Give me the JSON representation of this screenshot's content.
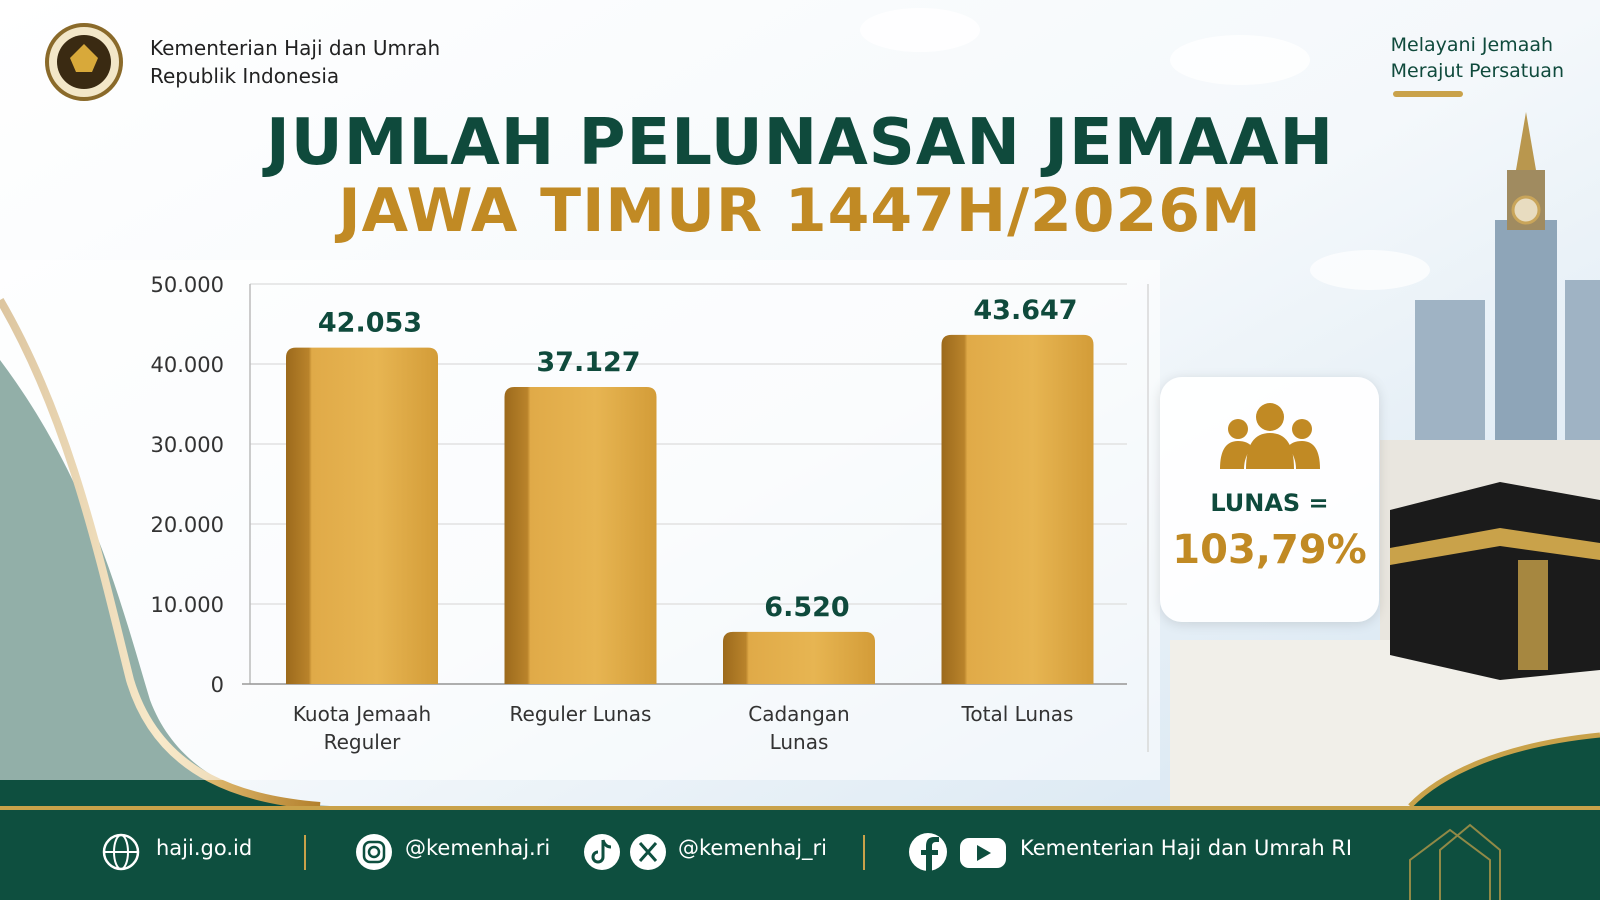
{
  "header": {
    "ministry": [
      "Kementerian Haji dan Umrah",
      "Republik Indonesia"
    ],
    "tagline": [
      "Melayani Jemaah",
      "Merajut Persatuan"
    ]
  },
  "chart_data": {
    "type": "bar",
    "title": "JUMLAH PELUNASAN JEMAAH",
    "subtitle": "JAWA TIMUR 1447H/2026M",
    "categories": [
      "Kuota Jemaah Reguler",
      "Reguler Lunas",
      "Cadangan Lunas",
      "Total Lunas"
    ],
    "values": [
      42053,
      37127,
      6520,
      43647
    ],
    "value_labels": [
      "42.053",
      "37.127",
      "6.520",
      "43.647"
    ],
    "color": "#d9a23c",
    "ylim": [
      0,
      50000
    ],
    "yticks": [
      0,
      {
        "value": 10000,
        "label": "10.000"
      },
      {
        "value": 20000,
        "label": "20.000"
      },
      {
        "value": 30000,
        "label": "30.000"
      },
      {
        "value": 40000,
        "label": "40.000"
      },
      {
        "value": 50000,
        "label": "50.000"
      }
    ],
    "grid": true
  },
  "stat": {
    "label": "LUNAS =",
    "value": "103,79%"
  },
  "footer": {
    "website": "haji.go.id",
    "instagram": "@kemenhaj.ri",
    "tiktok_x": "@kemenhaj_ri",
    "facebook_youtube": "Kementerian Haji dan Umrah RI"
  }
}
